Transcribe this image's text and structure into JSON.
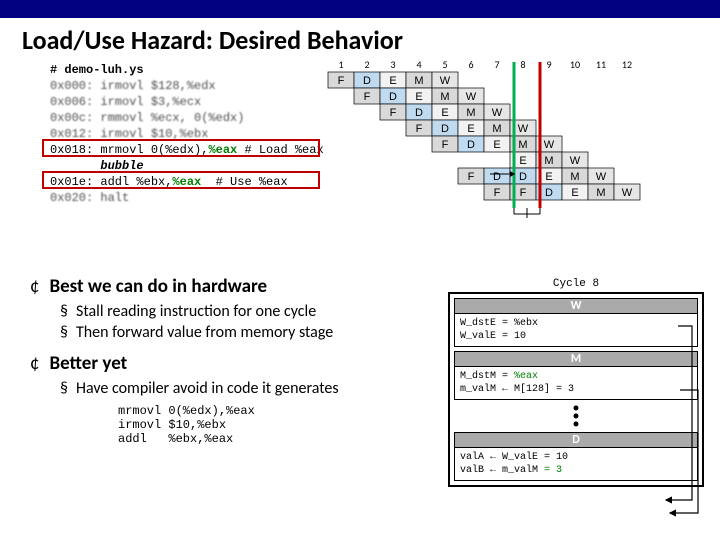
{
  "title": "Load/Use Hazard: Desired Behavior",
  "code": {
    "l0": "# demo-luh.ys",
    "l1": "0x000: irmovl $128,%edx",
    "l2": "0x006: irmovl $3,%ecx",
    "l3": "0x00c: rmmovl %ecx, 0(%edx)",
    "l4": "0x012: irmovl $10,%ebx",
    "l5a": "0x018: mrmovl 0(%edx),",
    "l5b": "%eax",
    "l5c": " # Load %eax",
    "l6": "       bubble",
    "l7a": "0x01e: addl %ebx,",
    "l7b": "%eax",
    "l7c": "  # Use %eax",
    "l8": "0x020: halt"
  },
  "cycles": {
    "hdrs": [
      "1",
      "2",
      "3",
      "4",
      "5",
      "6",
      "7",
      "8",
      "9",
      "10",
      "11",
      "12"
    ]
  },
  "pipeline": {
    "rows": [
      {
        "start": 1,
        "stages": [
          "F",
          "D",
          "E",
          "M",
          "W"
        ]
      },
      {
        "start": 2,
        "stages": [
          "F",
          "D",
          "E",
          "M",
          "W"
        ]
      },
      {
        "start": 3,
        "stages": [
          "F",
          "D",
          "E",
          "M",
          "W"
        ]
      },
      {
        "start": 4,
        "stages": [
          "F",
          "D",
          "E",
          "M",
          "W"
        ]
      },
      {
        "start": 5,
        "stages": [
          "F",
          "D",
          "E",
          "M",
          "W"
        ]
      },
      {
        "start": 6,
        "stages": [
          "",
          "",
          "E",
          "M",
          "W"
        ]
      },
      {
        "start": 6,
        "stages": [
          "F",
          "D",
          "D",
          "E",
          "M",
          "W"
        ]
      },
      {
        "start": 7,
        "stages": [
          "F",
          "F",
          "D",
          "E",
          "M",
          "W"
        ]
      }
    ]
  },
  "stage_colors": {
    "F": "#d9d9d9",
    "D": "#c0daf0",
    "E": "#f2f2f2",
    "M": "#d9d9d9",
    "W": "#e6e6e6"
  },
  "bullets": {
    "b1": "Best we can do in hardware",
    "b1_1": "Stall reading instruction for one cycle",
    "b1_2": "Then forward value from memory stage",
    "b2": "Better yet",
    "b2_1": "Have compiler avoid in code it generates"
  },
  "codeblock": "mrmovl 0(%edx),%eax\nirmovl $10,%ebx\naddl   %ebx,%eax",
  "cycle8": {
    "label": "Cycle 8",
    "W": {
      "l1": "W_dstE = %ebx",
      "l2": "W_valE = 10"
    },
    "M": {
      "l1a": "M_dstM = ",
      "l1b": "%eax",
      "l2": "m_valM ← M[128] = 3"
    },
    "D": {
      "l1": "valA ← W_valE = 10",
      "l2a": "valB ← m_valM ",
      "l2b": "= 3"
    }
  },
  "colors": {
    "topbar": "#000080",
    "redbox": "#c00000",
    "green_line": "#00b050",
    "red_line": "#c00000"
  }
}
